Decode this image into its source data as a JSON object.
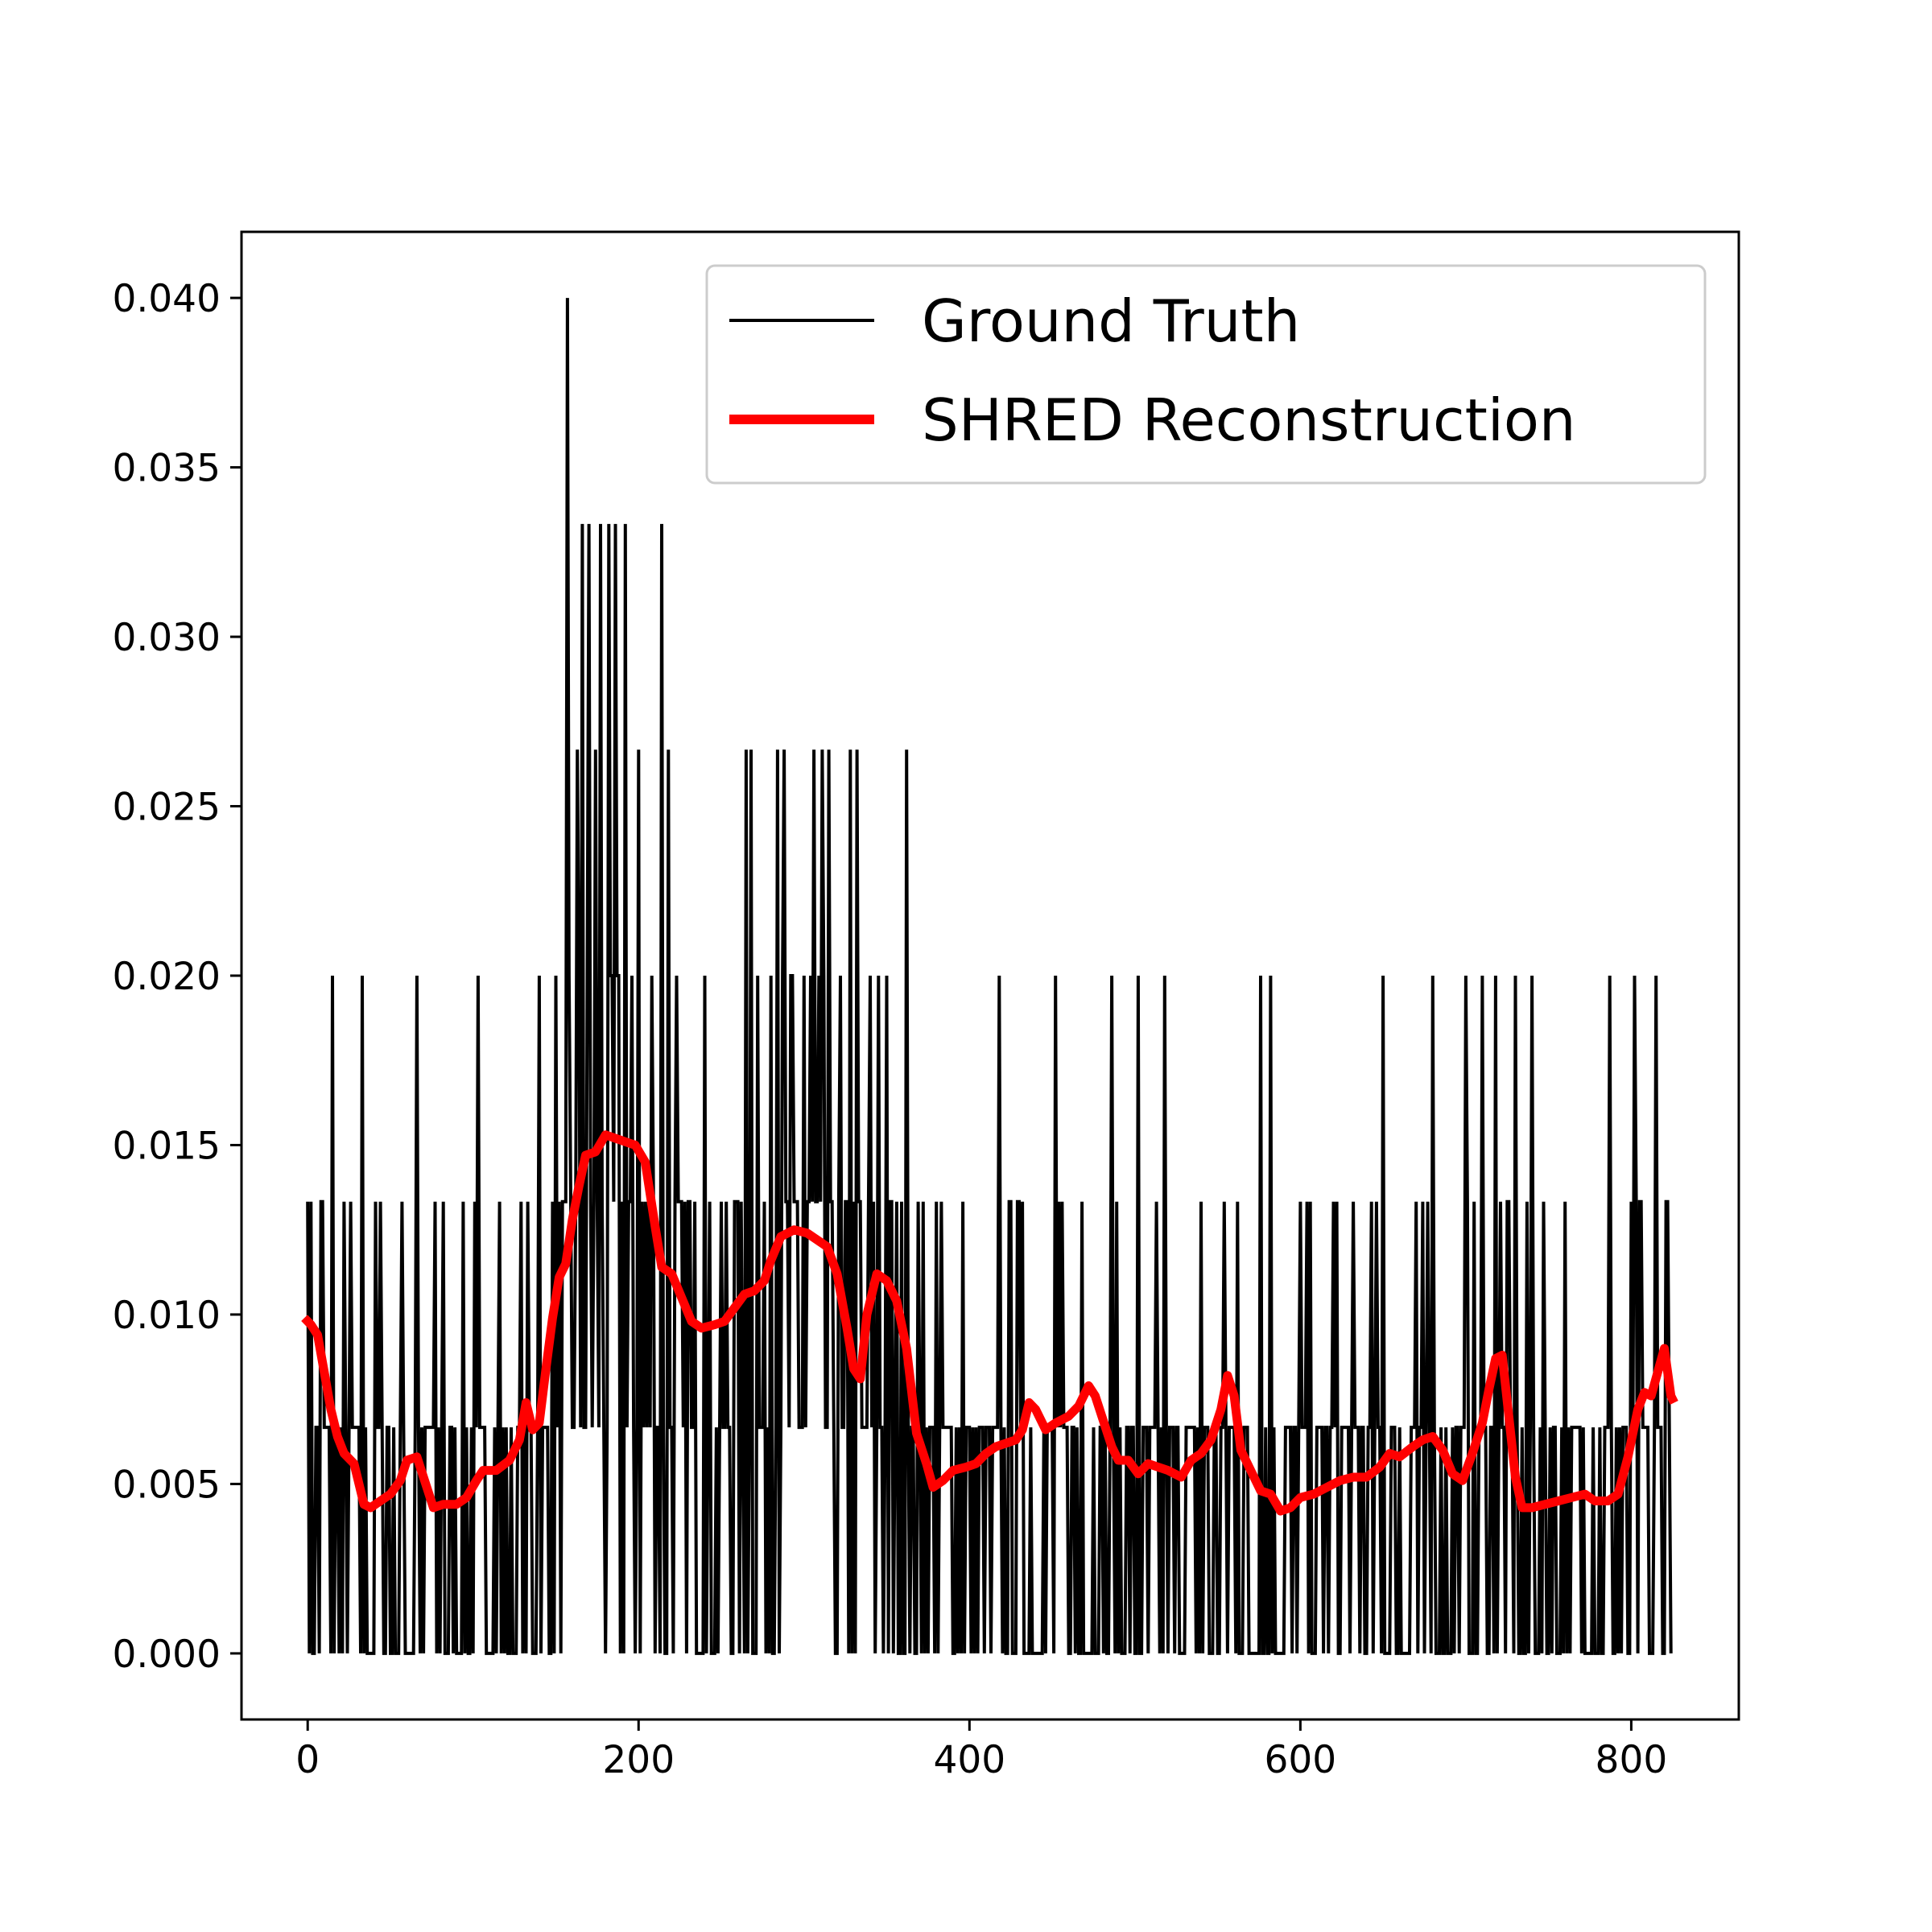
{
  "chart_data": {
    "type": "line",
    "title": "",
    "xlabel": "",
    "ylabel": "",
    "xlim": [
      -40,
      865
    ],
    "ylim": [
      -0.00195,
      0.04195
    ],
    "xticks": [
      0,
      200,
      400,
      600,
      800
    ],
    "yticks": [
      0.0,
      0.005,
      0.01,
      0.015,
      0.02,
      0.025,
      0.03,
      0.035,
      0.04
    ],
    "xtick_labels": [
      "0",
      "200",
      "400",
      "600",
      "800"
    ],
    "ytick_labels": [
      "0.000",
      "0.005",
      "0.010",
      "0.015",
      "0.020",
      "0.025",
      "0.030",
      "0.035",
      "0.040"
    ],
    "grid": false,
    "legend_position": "upper right",
    "series": [
      {
        "name": "Ground Truth",
        "color": "#000000",
        "levels": [
          0,
          0.00667,
          0.01333,
          0.02,
          0.02667,
          0.03333,
          0.04
        ],
        "peaks": [
          [
            0,
            0.01333
          ],
          [
            15,
            0.02
          ],
          [
            33,
            0.02
          ],
          [
            44,
            0.01333
          ],
          [
            66,
            0.02
          ],
          [
            82,
            0.01333
          ],
          [
            103,
            0.02
          ],
          [
            116,
            0.01333
          ],
          [
            140,
            0.02
          ],
          [
            150,
            0.02
          ],
          [
            157,
            0.04
          ],
          [
            163,
            0.02667
          ],
          [
            166,
            0.03333
          ],
          [
            170,
            0.03333
          ],
          [
            174,
            0.02667
          ],
          [
            177,
            0.03333
          ],
          [
            182,
            0.03333
          ],
          [
            186,
            0.03333
          ],
          [
            192,
            0.03333
          ],
          [
            200,
            0.02667
          ],
          [
            208,
            0.02
          ],
          [
            214,
            0.03333
          ],
          [
            218,
            0.02667
          ],
          [
            223,
            0.02
          ],
          [
            230,
            0.01333
          ],
          [
            240,
            0.02
          ],
          [
            258,
            0.01333
          ],
          [
            265,
            0.02667
          ],
          [
            268,
            0.02667
          ],
          [
            272,
            0.02
          ],
          [
            280,
            0.02
          ],
          [
            284,
            0.02667
          ],
          [
            288,
            0.02667
          ],
          [
            300,
            0.02
          ],
          [
            304,
            0.02
          ],
          [
            306,
            0.02667
          ],
          [
            311,
            0.02667
          ],
          [
            315,
            0.02667
          ],
          [
            322,
            0.02
          ],
          [
            328,
            0.02667
          ],
          [
            332,
            0.02667
          ],
          [
            340,
            0.02
          ],
          [
            345,
            0.02
          ],
          [
            350,
            0.02
          ],
          [
            362,
            0.02667
          ],
          [
            372,
            0.01333
          ],
          [
            380,
            0.01333
          ],
          [
            396,
            0.01333
          ],
          [
            418,
            0.02
          ],
          [
            430,
            0.01333
          ],
          [
            452,
            0.02
          ],
          [
            468,
            0.01333
          ],
          [
            486,
            0.02
          ],
          [
            502,
            0.02
          ],
          [
            518,
            0.02
          ],
          [
            540,
            0.01333
          ],
          [
            562,
            0.01333
          ],
          [
            576,
            0.02
          ],
          [
            582,
            0.02
          ],
          [
            600,
            0.01333
          ],
          [
            620,
            0.01333
          ],
          [
            650,
            0.02
          ],
          [
            670,
            0.01333
          ],
          [
            680,
            0.02
          ],
          [
            700,
            0.02
          ],
          [
            710,
            0.02
          ],
          [
            718,
            0.02
          ],
          [
            730,
            0.02
          ],
          [
            740,
            0.02
          ],
          [
            760,
            0.01333
          ],
          [
            787,
            0.02
          ],
          [
            802,
            0.02
          ],
          [
            815,
            0.02
          ],
          [
            822,
            0.01333
          ]
        ]
      },
      {
        "name": "SHRED Reconstruction",
        "color": "#ff0000",
        "points": [
          [
            -2,
            0.0099
          ],
          [
            2,
            0.0097
          ],
          [
            6,
            0.0094
          ],
          [
            10,
            0.0083
          ],
          [
            14,
            0.0072
          ],
          [
            18,
            0.0064
          ],
          [
            22,
            0.0059
          ],
          [
            28,
            0.0056
          ],
          [
            34,
            0.0044
          ],
          [
            38,
            0.0043
          ],
          [
            44,
            0.0045
          ],
          [
            50,
            0.0047
          ],
          [
            56,
            0.0051
          ],
          [
            60,
            0.0057
          ],
          [
            66,
            0.0058
          ],
          [
            70,
            0.0052
          ],
          [
            76,
            0.0043
          ],
          [
            82,
            0.0044
          ],
          [
            90,
            0.0044
          ],
          [
            96,
            0.0046
          ],
          [
            102,
            0.0051
          ],
          [
            106,
            0.0054
          ],
          [
            114,
            0.0054
          ],
          [
            122,
            0.0057
          ],
          [
            128,
            0.0063
          ],
          [
            132,
            0.0074
          ],
          [
            136,
            0.0066
          ],
          [
            140,
            0.0068
          ],
          [
            144,
            0.0084
          ],
          [
            148,
            0.0099
          ],
          [
            152,
            0.0111
          ],
          [
            156,
            0.0115
          ],
          [
            160,
            0.0128
          ],
          [
            164,
            0.0138
          ],
          [
            168,
            0.0147
          ],
          [
            174,
            0.0148
          ],
          [
            180,
            0.0153
          ],
          [
            186,
            0.0152
          ],
          [
            192,
            0.0151
          ],
          [
            198,
            0.015
          ],
          [
            204,
            0.0145
          ],
          [
            210,
            0.0126
          ],
          [
            214,
            0.0114
          ],
          [
            220,
            0.0112
          ],
          [
            226,
            0.0105
          ],
          [
            232,
            0.0098
          ],
          [
            238,
            0.0096
          ],
          [
            246,
            0.0097
          ],
          [
            252,
            0.0098
          ],
          [
            258,
            0.0102
          ],
          [
            264,
            0.0106
          ],
          [
            270,
            0.0107
          ],
          [
            276,
            0.011
          ],
          [
            280,
            0.0116
          ],
          [
            286,
            0.0123
          ],
          [
            294,
            0.0125
          ],
          [
            302,
            0.0124
          ],
          [
            308,
            0.0122
          ],
          [
            314,
            0.012
          ],
          [
            320,
            0.0112
          ],
          [
            326,
            0.0096
          ],
          [
            330,
            0.0084
          ],
          [
            334,
            0.0081
          ],
          [
            338,
            0.01
          ],
          [
            344,
            0.0112
          ],
          [
            350,
            0.011
          ],
          [
            356,
            0.0104
          ],
          [
            362,
            0.009
          ],
          [
            368,
            0.0065
          ],
          [
            374,
            0.0056
          ],
          [
            378,
            0.0049
          ],
          [
            384,
            0.0051
          ],
          [
            390,
            0.0054
          ],
          [
            398,
            0.0055
          ],
          [
            404,
            0.0056
          ],
          [
            410,
            0.0059
          ],
          [
            416,
            0.0061
          ],
          [
            422,
            0.0062
          ],
          [
            428,
            0.0063
          ],
          [
            432,
            0.0066
          ],
          [
            436,
            0.0074
          ],
          [
            440,
            0.0072
          ],
          [
            446,
            0.0066
          ],
          [
            452,
            0.0068
          ],
          [
            460,
            0.007
          ],
          [
            466,
            0.0073
          ],
          [
            472,
            0.0079
          ],
          [
            476,
            0.0076
          ],
          [
            480,
            0.007
          ],
          [
            486,
            0.0061
          ],
          [
            490,
            0.0057
          ],
          [
            496,
            0.0057
          ],
          [
            502,
            0.0053
          ],
          [
            508,
            0.0056
          ],
          [
            514,
            0.0055
          ],
          [
            520,
            0.0054
          ],
          [
            528,
            0.0052
          ],
          [
            534,
            0.0057
          ],
          [
            540,
            0.0059
          ],
          [
            546,
            0.0063
          ],
          [
            552,
            0.0072
          ],
          [
            556,
            0.0082
          ],
          [
            560,
            0.0076
          ],
          [
            564,
            0.006
          ],
          [
            570,
            0.0054
          ],
          [
            576,
            0.0048
          ],
          [
            582,
            0.0047
          ],
          [
            588,
            0.0042
          ],
          [
            594,
            0.0043
          ],
          [
            600,
            0.0046
          ],
          [
            608,
            0.0047
          ],
          [
            616,
            0.0049
          ],
          [
            624,
            0.0051
          ],
          [
            632,
            0.0052
          ],
          [
            640,
            0.0052
          ],
          [
            648,
            0.0055
          ],
          [
            654,
            0.0059
          ],
          [
            660,
            0.0058
          ],
          [
            668,
            0.0061
          ],
          [
            674,
            0.0063
          ],
          [
            680,
            0.0064
          ],
          [
            686,
            0.006
          ],
          [
            692,
            0.0053
          ],
          [
            698,
            0.0051
          ],
          [
            704,
            0.0059
          ],
          [
            710,
            0.0068
          ],
          [
            714,
            0.0078
          ],
          [
            718,
            0.0087
          ],
          [
            722,
            0.0088
          ],
          [
            726,
            0.007
          ],
          [
            730,
            0.0052
          ],
          [
            734,
            0.0043
          ],
          [
            740,
            0.0043
          ],
          [
            748,
            0.0044
          ],
          [
            756,
            0.0045
          ],
          [
            764,
            0.0046
          ],
          [
            772,
            0.0047
          ],
          [
            778,
            0.0045
          ],
          [
            786,
            0.0045
          ],
          [
            792,
            0.0047
          ],
          [
            798,
            0.0058
          ],
          [
            804,
            0.0072
          ],
          [
            808,
            0.0077
          ],
          [
            812,
            0.0076
          ],
          [
            816,
            0.0083
          ],
          [
            820,
            0.009
          ],
          [
            824,
            0.0076
          ],
          [
            826,
            0.0074
          ]
        ]
      }
    ]
  },
  "legend": {
    "entries": [
      {
        "label": "Ground Truth",
        "color": "#000000"
      },
      {
        "label": "SHRED Reconstruction",
        "color": "#ff0000"
      }
    ]
  }
}
